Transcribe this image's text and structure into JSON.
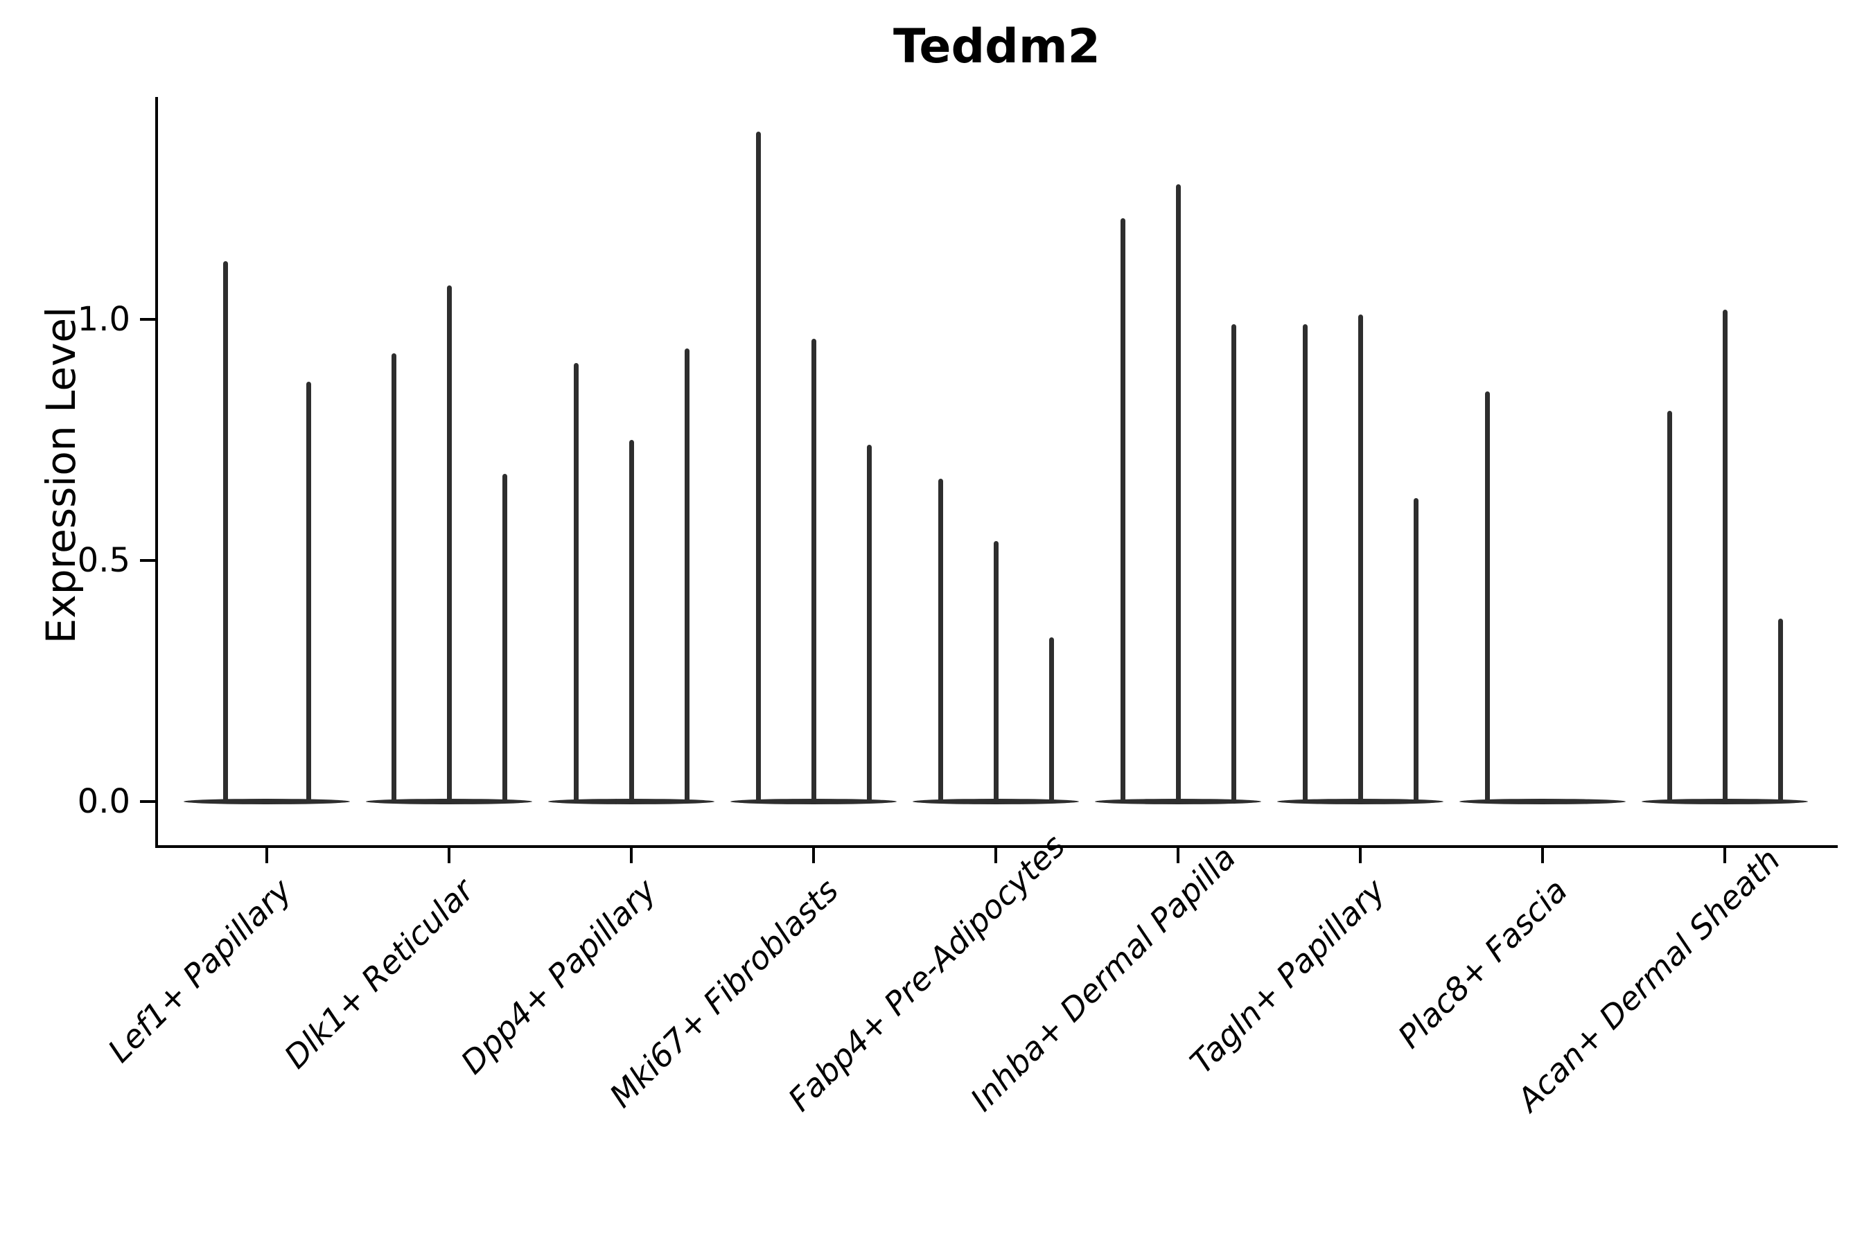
{
  "chart_data": {
    "type": "violin",
    "title": "Teddm2",
    "ylabel": "Expression Level",
    "xlabel": "",
    "yticks": [
      0.0,
      0.5,
      1.0
    ],
    "ylim": [
      -0.09,
      1.46
    ],
    "grid": false,
    "legend": "none",
    "violin_color": "#2e2e2e",
    "axis_color": "#000000",
    "categories": [
      "Lef1+ Papillary",
      "Dlk1+ Reticular",
      "Dpp4+ Papillary",
      "Mki67+ Fibroblasts",
      "Fabp4+ Pre-Adipocytes",
      "Inhba+ Dermal Papilla",
      "Tagln+ Papillary",
      "Plac8+ Fascia",
      "Acan+ Dermal Sheath"
    ],
    "groups": [
      {
        "category": "Lef1+ Papillary",
        "violin_max_values": [
          1.12,
          0.87
        ]
      },
      {
        "category": "Dlk1+ Reticular",
        "violin_max_values": [
          0.93,
          1.07,
          0.68
        ]
      },
      {
        "category": "Dpp4+ Papillary",
        "violin_max_values": [
          0.91,
          0.75,
          0.94
        ]
      },
      {
        "category": "Mki67+ Fibroblasts",
        "violin_max_values": [
          1.39,
          0.96,
          0.74
        ]
      },
      {
        "category": "Fabp4+ Pre-Adipocytes",
        "violin_max_values": [
          0.67,
          0.54,
          0.34
        ]
      },
      {
        "category": "Inhba+ Dermal Papilla",
        "violin_max_values": [
          1.21,
          1.28,
          0.99
        ]
      },
      {
        "category": "Tagln+ Papillary",
        "violin_max_values": [
          0.99,
          1.01,
          0.63
        ]
      },
      {
        "category": "Plac8+ Fascia",
        "violin_max_values": [
          0.85,
          0.0,
          0.0
        ]
      },
      {
        "category": "Acan+ Dermal Sheath",
        "violin_max_values": [
          0.81,
          1.02,
          0.38
        ]
      }
    ],
    "description": "Violin plot of Teddm2 expression level per fibroblast cell-type cluster; each category holds thin spike-like violins with flat bases at 0."
  }
}
